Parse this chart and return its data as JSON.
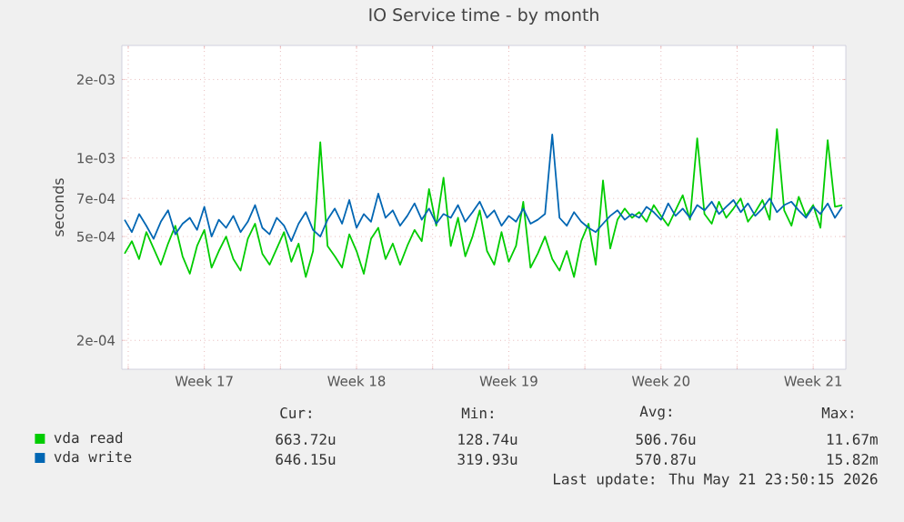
{
  "chart_data": {
    "type": "line",
    "title": "IO Service time - by month",
    "ylabel": "seconds",
    "log": "y",
    "grid": true,
    "legend": "bottom",
    "xlim": [
      "2026-04-19T17:00",
      "2026-05-23T00:00"
    ],
    "ylim": [
      0.000155,
      0.0027
    ],
    "xticks": [
      {
        "value": "2026-04-20",
        "label": null
      },
      {
        "value": "2026-04-23T12:00",
        "label": "Week 17"
      },
      {
        "value": "2026-04-27",
        "label": null
      },
      {
        "value": "2026-04-30T12:00",
        "label": "Week 18"
      },
      {
        "value": "2026-05-04",
        "label": null
      },
      {
        "value": "2026-05-07T12:00",
        "label": "Week 19"
      },
      {
        "value": "2026-05-11",
        "label": null
      },
      {
        "value": "2026-05-14T12:00",
        "label": "Week 20"
      },
      {
        "value": "2026-05-18",
        "label": null
      },
      {
        "value": "2026-05-21T12:00",
        "label": "Week 21"
      }
    ],
    "yticks": [
      {
        "value": 0.0002,
        "label": "2e-04"
      },
      {
        "value": 0.0005,
        "label": "5e-04"
      },
      {
        "value": 0.0007,
        "label": "7e-04"
      },
      {
        "value": 0.001,
        "label": "1e-03"
      },
      {
        "value": 0.002,
        "label": "2e-03"
      }
    ],
    "x": [
      "2026-04-19T20:00",
      "2026-04-20T04:00",
      "2026-04-20T12:00",
      "2026-04-20T20:00",
      "2026-04-21T04:00",
      "2026-04-21T12:00",
      "2026-04-21T20:00",
      "2026-04-22T04:00",
      "2026-04-22T12:00",
      "2026-04-22T20:00",
      "2026-04-23T04:00",
      "2026-04-23T12:00",
      "2026-04-23T20:00",
      "2026-04-24T04:00",
      "2026-04-24T12:00",
      "2026-04-24T20:00",
      "2026-04-25T04:00",
      "2026-04-25T12:00",
      "2026-04-25T20:00",
      "2026-04-26T04:00",
      "2026-04-26T12:00",
      "2026-04-26T20:00",
      "2026-04-27T04:00",
      "2026-04-27T12:00",
      "2026-04-27T20:00",
      "2026-04-28T04:00",
      "2026-04-28T12:00",
      "2026-04-28T20:00",
      "2026-04-29T04:00",
      "2026-04-29T12:00",
      "2026-04-29T20:00",
      "2026-04-30T04:00",
      "2026-04-30T12:00",
      "2026-04-30T20:00",
      "2026-05-01T04:00",
      "2026-05-01T12:00",
      "2026-05-01T20:00",
      "2026-05-02T04:00",
      "2026-05-02T12:00",
      "2026-05-02T20:00",
      "2026-05-03T04:00",
      "2026-05-03T12:00",
      "2026-05-03T20:00",
      "2026-05-04T04:00",
      "2026-05-04T12:00",
      "2026-05-04T20:00",
      "2026-05-05T04:00",
      "2026-05-05T12:00",
      "2026-05-05T20:00",
      "2026-05-06T04:00",
      "2026-05-06T12:00",
      "2026-05-06T20:00",
      "2026-05-07T04:00",
      "2026-05-07T12:00",
      "2026-05-07T20:00",
      "2026-05-08T04:00",
      "2026-05-08T12:00",
      "2026-05-08T20:00",
      "2026-05-09T04:00",
      "2026-05-09T12:00",
      "2026-05-09T20:00",
      "2026-05-10T04:00",
      "2026-05-10T12:00",
      "2026-05-10T20:00",
      "2026-05-11T04:00",
      "2026-05-11T12:00",
      "2026-05-11T20:00",
      "2026-05-12T04:00",
      "2026-05-12T12:00",
      "2026-05-12T20:00",
      "2026-05-13T04:00",
      "2026-05-13T12:00",
      "2026-05-13T20:00",
      "2026-05-14T04:00",
      "2026-05-14T12:00",
      "2026-05-14T20:00",
      "2026-05-15T04:00",
      "2026-05-15T12:00",
      "2026-05-15T20:00",
      "2026-05-16T04:00",
      "2026-05-16T12:00",
      "2026-05-16T20:00",
      "2026-05-17T04:00",
      "2026-05-17T12:00",
      "2026-05-17T20:00",
      "2026-05-18T04:00",
      "2026-05-18T12:00",
      "2026-05-18T20:00",
      "2026-05-19T04:00",
      "2026-05-19T12:00",
      "2026-05-19T20:00",
      "2026-05-20T04:00",
      "2026-05-20T12:00",
      "2026-05-20T20:00",
      "2026-05-21T04:00",
      "2026-05-21T12:00",
      "2026-05-21T20:00",
      "2026-05-22T04:00",
      "2026-05-22T12:00",
      "2026-05-22T20:00"
    ],
    "series": [
      {
        "name": "vda read",
        "color": "#00cc00",
        "values": [
          0.00043,
          0.00048,
          0.00041,
          0.00052,
          0.00045,
          0.00039,
          0.00047,
          0.00055,
          0.00042,
          0.00036,
          0.00046,
          0.00053,
          0.00038,
          0.00044,
          0.0005,
          0.00041,
          0.00037,
          0.00049,
          0.00056,
          0.00043,
          0.00039,
          0.00045,
          0.00052,
          0.0004,
          0.00047,
          0.00035,
          0.00044,
          0.00115,
          0.00046,
          0.00042,
          0.00038,
          0.00051,
          0.00044,
          0.00036,
          0.00049,
          0.00054,
          0.00041,
          0.00047,
          0.00039,
          0.00046,
          0.00053,
          0.00048,
          0.00076,
          0.00055,
          0.00084,
          0.00046,
          0.00059,
          0.00042,
          0.0005,
          0.00063,
          0.00044,
          0.00039,
          0.00052,
          0.0004,
          0.00046,
          0.00068,
          0.00038,
          0.00043,
          0.0005,
          0.00041,
          0.00037,
          0.00044,
          0.00035,
          0.00048,
          0.00056,
          0.00039,
          0.00082,
          0.00045,
          0.00058,
          0.00064,
          0.00059,
          0.00062,
          0.00057,
          0.00066,
          0.0006,
          0.00055,
          0.00063,
          0.00072,
          0.00058,
          0.00119,
          0.00061,
          0.00056,
          0.00068,
          0.00059,
          0.00064,
          0.0007,
          0.00057,
          0.00062,
          0.00069,
          0.00058,
          0.00129,
          0.00063,
          0.00055,
          0.00071,
          0.0006,
          0.00066,
          0.00054,
          0.00117,
          0.00065,
          0.00066
        ]
      },
      {
        "name": "vda write",
        "color": "#0066b3",
        "values": [
          0.00058,
          0.00052,
          0.00061,
          0.00055,
          0.00049,
          0.00057,
          0.00063,
          0.00051,
          0.00056,
          0.00059,
          0.00053,
          0.00065,
          0.0005,
          0.00058,
          0.00054,
          0.0006,
          0.00052,
          0.00057,
          0.00066,
          0.00054,
          0.00051,
          0.00059,
          0.00055,
          0.00048,
          0.00056,
          0.00062,
          0.00053,
          0.0005,
          0.00058,
          0.00064,
          0.00056,
          0.00069,
          0.00054,
          0.00061,
          0.00057,
          0.00073,
          0.00059,
          0.00063,
          0.00055,
          0.0006,
          0.00067,
          0.00058,
          0.00064,
          0.00056,
          0.00061,
          0.00059,
          0.00066,
          0.00057,
          0.00062,
          0.00068,
          0.00059,
          0.00063,
          0.00055,
          0.0006,
          0.00057,
          0.00064,
          0.00056,
          0.00058,
          0.00061,
          0.00123,
          0.00059,
          0.00055,
          0.00062,
          0.00057,
          0.00054,
          0.00052,
          0.00056,
          0.0006,
          0.00063,
          0.00058,
          0.00061,
          0.00059,
          0.00065,
          0.00062,
          0.00058,
          0.00067,
          0.0006,
          0.00064,
          0.00059,
          0.00066,
          0.00063,
          0.00068,
          0.00061,
          0.00065,
          0.00069,
          0.00062,
          0.00067,
          0.0006,
          0.00064,
          0.0007,
          0.00062,
          0.00066,
          0.00068,
          0.00063,
          0.00059,
          0.00065,
          0.00061,
          0.00067,
          0.00059,
          0.00065
        ]
      }
    ],
    "annotations": [
      "Cur:",
      "Min:",
      "Avg:",
      "Max:",
      "663.72u",
      "128.74u",
      "506.76u",
      "11.67m",
      "646.15u",
      "319.93u",
      "570.87u",
      "15.82m",
      "Last update: Thu May 21 23:50:15 2026"
    ]
  }
}
